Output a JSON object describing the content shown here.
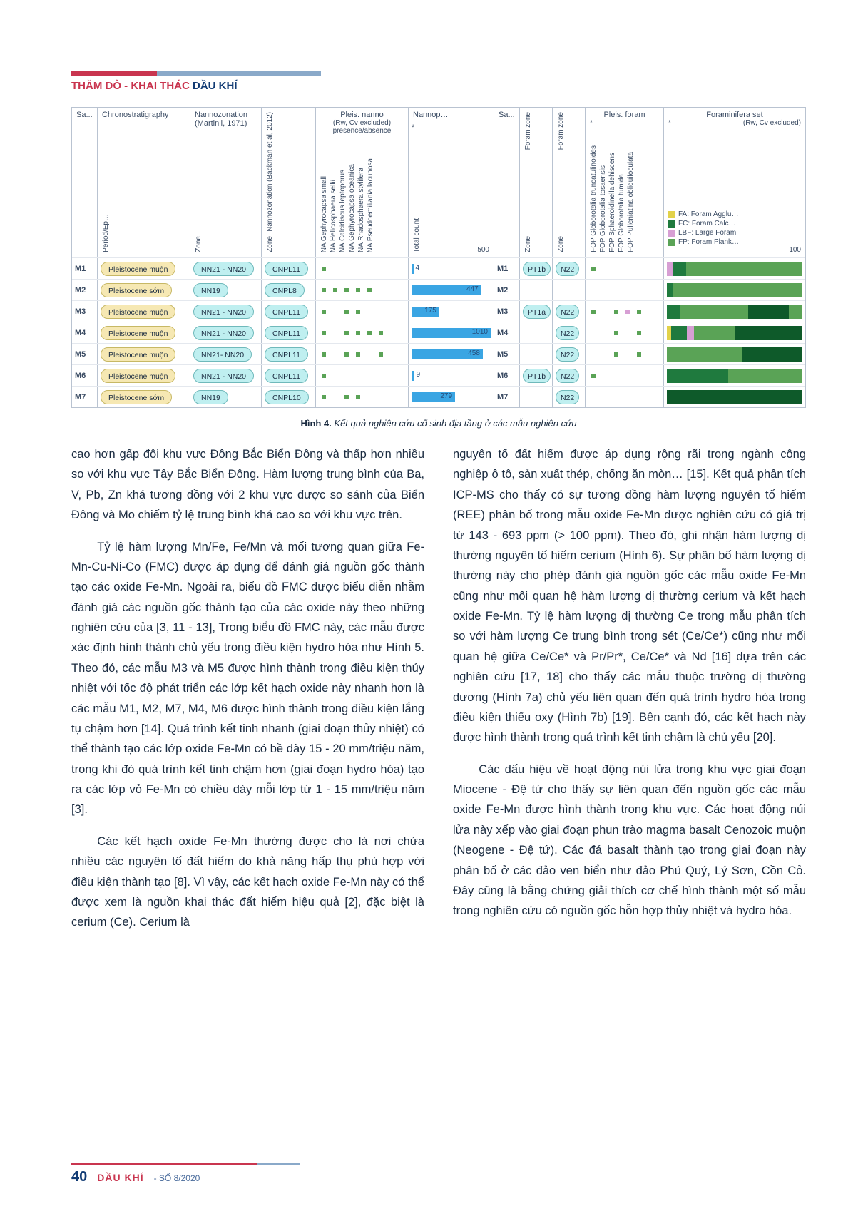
{
  "header": {
    "red": "THĂM DÒ - KHAI THÁC",
    "blue": "DẦU KHÍ"
  },
  "footer": {
    "page": "40",
    "magazine": "DẦU KHÍ",
    "issue": "- SỐ 8/2020"
  },
  "chart": {
    "head": {
      "col_sa1": "Sa...",
      "col_chrono": "Chronostratigraphy",
      "col_chrono_sub": "Period/Ep…",
      "col_nanno": "Nannozonation\n(Martinii, 1971)",
      "col_nanno_sub": "Zone",
      "col_nanno2": "Nannozonation\n(Backman et al, 2012)",
      "col_nanno2_sub": "Zone",
      "col_pleis": "Pleis. nanno",
      "col_rwcv": "(Rw, Cv excluded)\npresence/absence",
      "species_nanno": [
        "NA Gephyrocapsa small",
        "NA Helicosphaera sellii",
        "NA Calcidiscus leptoporus",
        "NA Gephyrocapsa oceanica",
        "NA Rhadosphaera stylifera",
        "NA Pseudoemiliania lacunosa"
      ],
      "col_nannop": "Nannop…",
      "col_total": "Total count",
      "total_max": "500",
      "col_sa2": "Sa...",
      "col_fz1": "Foram zone",
      "col_fz1_sub": "Zone",
      "col_fz2": "Foram zone",
      "col_fz2_sub": "Zone",
      "col_pleisf": "Pleis. foram",
      "species_foram": [
        "FOP Globorotalia truncatulinoides",
        "FOP Globorotalia tosaensis",
        "FOP Sphaeroidinella dehiscens",
        "FOP Globorotalia tumida",
        "FOP Pulleniatina obliquiloculata"
      ],
      "col_forset": "Foraminifera set",
      "col_rwcv2": "(Rw, Cv excluded)",
      "for_max": "100",
      "legend": [
        {
          "label": "FA: Foram Agglu…",
          "color": "#e2d24a"
        },
        {
          "label": "FC: Foram Calc…",
          "color": "#1f7a3e"
        },
        {
          "label": "LBF: Large Foram",
          "color": "#d79fd4"
        },
        {
          "label": "FP: Foram Plank…",
          "color": "#5aa356"
        }
      ]
    },
    "colors": {
      "pill_yellow": "#f6e8b3",
      "pill_teal": "#bfeff0",
      "bar": "#3aa5e3",
      "dot": "#5aa356",
      "FA": "#e2d24a",
      "FC": "#1f7a3e",
      "LBF": "#d79fd4",
      "FP": "#5aa356",
      "FPdk": "#0e5a2a"
    },
    "col_widths": {
      "sa": 36,
      "chrono": 130,
      "nanno": 100,
      "nanno2": 76,
      "pleis": 130,
      "nannop": 120,
      "sa2": 36,
      "fz": 46,
      "pleisf": 110,
      "forset": 200
    },
    "rows": [
      {
        "id": "M1",
        "chrono": "Pleistocene muộn",
        "nanno": "NN21 - NN20",
        "nanno2": "CNPL11",
        "dots": [
          1,
          0,
          0,
          0,
          0,
          0
        ],
        "total": 4,
        "total_w": 3,
        "fz1": "PT1b",
        "fz2": "N22",
        "fdots": [
          1,
          0,
          0,
          0,
          0
        ],
        "stack": [
          [
            "#d79fd4",
            4
          ],
          [
            "#1f7a3e",
            10
          ],
          [
            "#5aa356",
            86
          ]
        ]
      },
      {
        "id": "M2",
        "chrono": "Pleistocene sớm",
        "nanno": "NN19",
        "nanno2": "CNPL8",
        "dots": [
          1,
          1,
          1,
          1,
          1,
          0
        ],
        "total": 447,
        "total_w": 88,
        "fz1": "",
        "fz2": "",
        "fdots": [
          0,
          0,
          0,
          0,
          0
        ],
        "stack": [
          [
            "#1f7a3e",
            4
          ],
          [
            "#5aa356",
            96
          ]
        ]
      },
      {
        "id": "M3",
        "chrono": "Pleistocene muộn",
        "nanno": "NN21 - NN20",
        "nanno2": "CNPL11",
        "dots": [
          1,
          0,
          1,
          1,
          0,
          0
        ],
        "total": 175,
        "total_w": 35,
        "fz1": "PT1a",
        "fz2": "N22",
        "fdots": [
          1,
          0,
          1,
          1,
          1
        ],
        "stack": [
          [
            "#1f7a3e",
            10
          ],
          [
            "#5aa356",
            50
          ],
          [
            "#0e5a2a",
            30
          ],
          [
            "#5aa356",
            10
          ]
        ]
      },
      {
        "id": "M4",
        "chrono": "Pleistocene muộn",
        "nanno": "NN21 - NN20",
        "nanno2": "CNPL11",
        "dots": [
          1,
          0,
          1,
          1,
          1,
          1
        ],
        "total": 1010,
        "total_w": 100,
        "fz1": "",
        "fz2": "N22",
        "fdots": [
          0,
          0,
          1,
          0,
          1
        ],
        "stack": [
          [
            "#e2d24a",
            3
          ],
          [
            "#1f7a3e",
            12
          ],
          [
            "#d79fd4",
            5
          ],
          [
            "#5aa356",
            30
          ],
          [
            "#0e5a2a",
            50
          ]
        ]
      },
      {
        "id": "M5",
        "chrono": "Pleistocene muộn",
        "nanno": "NN21- NN20",
        "nanno2": "CNPL11",
        "dots": [
          1,
          0,
          1,
          1,
          0,
          1
        ],
        "total": 458,
        "total_w": 90,
        "fz1": "",
        "fz2": "N22",
        "fdots": [
          0,
          0,
          1,
          0,
          1
        ],
        "stack": [
          [
            "#5aa356",
            55
          ],
          [
            "#0e5a2a",
            45
          ]
        ]
      },
      {
        "id": "M6",
        "chrono": "Pleistocene muộn",
        "nanno": "NN21 - NN20",
        "nanno2": "CNPL11",
        "dots": [
          1,
          0,
          0,
          0,
          0,
          0
        ],
        "total": 9,
        "total_w": 4,
        "fz1": "PT1b",
        "fz2": "N22",
        "fdots": [
          1,
          0,
          0,
          0,
          0
        ],
        "stack": [
          [
            "#1f7a3e",
            45
          ],
          [
            "#5aa356",
            55
          ]
        ]
      },
      {
        "id": "M7",
        "chrono": "Pleistocene sớm",
        "nanno": "NN19",
        "nanno2": "CNPL10",
        "dots": [
          1,
          0,
          1,
          1,
          0,
          0
        ],
        "total": 279,
        "total_w": 55,
        "fz1": "",
        "fz2": "N22",
        "fdots": [
          0,
          0,
          0,
          0,
          0
        ],
        "stack": [
          [
            "#0e5a2a",
            100
          ]
        ]
      }
    ]
  },
  "caption_bold": "Hình 4.",
  "caption_rest": " Kết quả nghiên cứu cổ sinh địa tầng ở các mẫu nghiên cứu",
  "paras_left": [
    "cao hơn gấp đôi khu vực Đông Bắc Biển Đông và thấp hơn nhiều so với khu vực Tây Bắc Biển Đông. Hàm lượng trung bình của Ba, V, Pb, Zn khá tương đồng với 2 khu vực được so sánh của Biển Đông và Mo chiếm tỷ lệ trung bình khá cao so với khu vực trên.",
    "Tỷ lệ hàm lượng Mn/Fe, Fe/Mn và mối tương quan giữa Fe-Mn-Cu-Ni-Co (FMC) được áp dụng để đánh giá nguồn gốc thành tạo các oxide Fe-Mn. Ngoài ra, biểu đồ FMC được biểu diễn nhằm đánh giá các nguồn gốc thành tạo của các oxide này theo những nghiên cứu của [3, 11 - 13], Trong biểu đồ FMC này, các mẫu được xác định hình thành chủ yếu trong điều kiện hydro hóa như Hình 5. Theo đó, các mẫu M3 và M5 được hình thành trong điều kiện thủy nhiệt với tốc độ phát triển các lớp kết hạch oxide này nhanh hơn là các mẫu M1, M2, M7, M4, M6 được hình thành trong điều kiện lắng tụ chậm hơn [14]. Quá trình kết tinh nhanh (giai đoạn thủy nhiệt) có thể thành tạo các lớp oxide Fe-Mn có bề dày 15 - 20 mm/triệu năm, trong khi đó quá trình kết tinh chậm hơn (giai đoạn hydro hóa) tạo ra các lớp vỏ Fe-Mn có chiều dày mỗi lớp từ 1 - 15 mm/triệu năm [3].",
    "Các kết hạch oxide Fe-Mn thường được cho là nơi chứa nhiều các nguyên tố đất hiếm do khả năng hấp thụ phù hợp với điều kiện thành tạo [8]. Vì vậy, các kết hạch oxide Fe-Mn này có thể được xem là nguồn khai thác đất hiếm hiệu quả [2], đặc biệt là cerium (Ce). Cerium là"
  ],
  "para_left_first_noindent": true,
  "paras_right": [
    "nguyên tố đất hiếm được áp dụng rộng rãi trong ngành công nghiệp ô tô, sản xuất thép, chống ăn mòn… [15]. Kết quả phân tích ICP-MS cho thấy có sự tương đồng hàm lượng nguyên tố hiếm (REE) phân bố trong mẫu oxide Fe-Mn được nghiên cứu có giá trị từ 143 - 693  ppm (> 100 ppm). Theo đó, ghi nhận hàm lượng dị thường nguyên tố hiếm cerium (Hình 6). Sự phân bố hàm lượng dị thường này cho phép đánh giá nguồn gốc các mẫu oxide Fe-Mn cũng như mối quan hệ hàm lượng dị thường cerium và kết hạch oxide Fe-Mn. Tỷ lệ hàm lượng dị thường Ce trong mẫu phân tích so với hàm lượng Ce trung bình trong sét (Ce/Ce*) cũng như mối quan hệ giữa Ce/Ce* và Pr/Pr*, Ce/Ce* và Nd [16] dựa trên các nghiên cứu [17, 18] cho thấy các mẫu thuộc trường dị thường dương (Hình 7a) chủ yếu liên quan đến quá trình hydro hóa trong điều kiện thiếu oxy (Hình 7b) [19]. Bên cạnh đó, các kết hạch này được hình thành trong quá trình kết tinh chậm là chủ yếu [20].",
    "Các dấu hiệu về hoạt động núi lửa trong khu vực giai đoạn Miocene - Đệ tứ cho thấy sự liên quan đến nguồn gốc các mẫu oxide Fe-Mn được hình thành trong khu vực. Các hoạt động núi lửa này xếp vào giai đoạn phun trào magma basalt Cenozoic muộn (Neogene - Đệ tứ). Các đá basalt thành tạo trong giai đoạn này phân bố ở các đảo ven biển như đảo Phú Quý, Lý Sơn, Cồn Cỏ. Đây cũng là bằng chứng giải thích cơ chế hình thành một số mẫu trong nghiên cứu có nguồn gốc hỗn hợp thủy nhiệt và hydro hóa."
  ]
}
